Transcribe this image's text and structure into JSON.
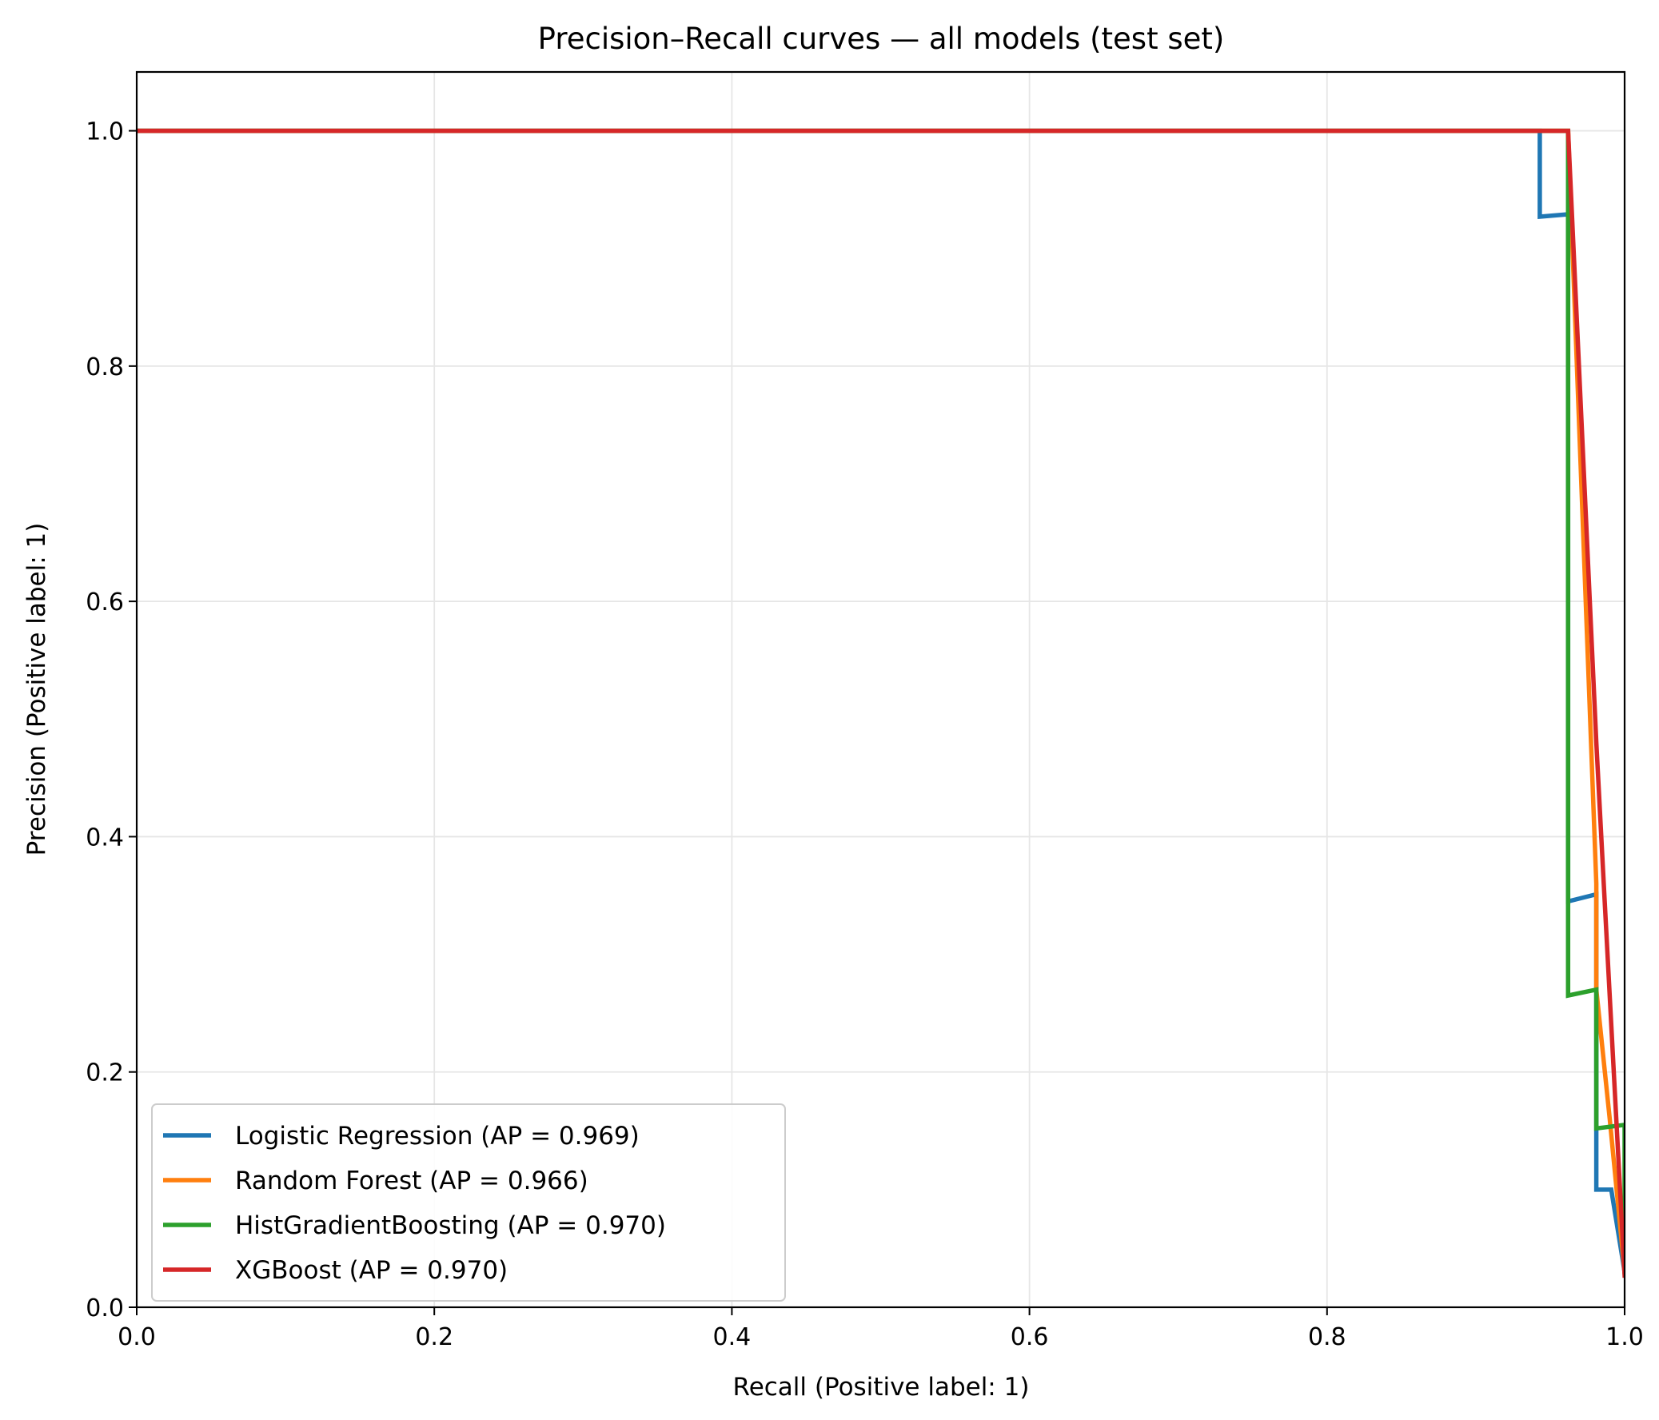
{
  "chart_data": {
    "type": "line",
    "title": "Precision–Recall curves — all models (test set)",
    "xlabel": "Recall (Positive label: 1)",
    "ylabel": "Precision (Positive label: 1)",
    "xlim": [
      0.0,
      1.0
    ],
    "ylim": [
      0.0,
      1.05
    ],
    "xticks": [
      "0.0",
      "0.2",
      "0.4",
      "0.6",
      "0.8",
      "1.0"
    ],
    "yticks": [
      "0.0",
      "0.2",
      "0.4",
      "0.6",
      "0.8",
      "1.0"
    ],
    "grid": true,
    "legend_position": "lower-left",
    "series": [
      {
        "name": "Logistic Regression (AP = 0.969)",
        "color": "#1f77b4",
        "points": [
          [
            0.0,
            1.0
          ],
          [
            0.943,
            1.0
          ],
          [
            0.943,
            0.927
          ],
          [
            0.962,
            0.929
          ],
          [
            0.962,
            0.345
          ],
          [
            0.981,
            0.351
          ],
          [
            0.981,
            0.1
          ],
          [
            0.991,
            0.1
          ],
          [
            1.0,
            0.03
          ]
        ]
      },
      {
        "name": "Random Forest (AP = 0.966)",
        "color": "#ff7f0e",
        "points": [
          [
            0.0,
            1.0
          ],
          [
            0.962,
            1.0
          ],
          [
            0.981,
            0.36
          ],
          [
            0.981,
            0.27
          ],
          [
            0.99,
            0.16
          ],
          [
            1.0,
            0.03
          ]
        ]
      },
      {
        "name": "HistGradientBoosting (AP = 0.970)",
        "color": "#2ca02c",
        "points": [
          [
            0.0,
            1.0
          ],
          [
            0.962,
            1.0
          ],
          [
            0.962,
            0.265
          ],
          [
            0.981,
            0.27
          ],
          [
            0.981,
            0.152
          ],
          [
            1.0,
            0.155
          ],
          [
            1.0,
            0.03
          ]
        ]
      },
      {
        "name": "XGBoost (AP = 0.970)",
        "color": "#d62728",
        "points": [
          [
            0.0,
            1.0
          ],
          [
            0.962,
            1.0
          ],
          [
            0.981,
            0.48
          ],
          [
            0.986,
            0.36
          ],
          [
            1.0,
            0.027
          ]
        ]
      }
    ]
  }
}
